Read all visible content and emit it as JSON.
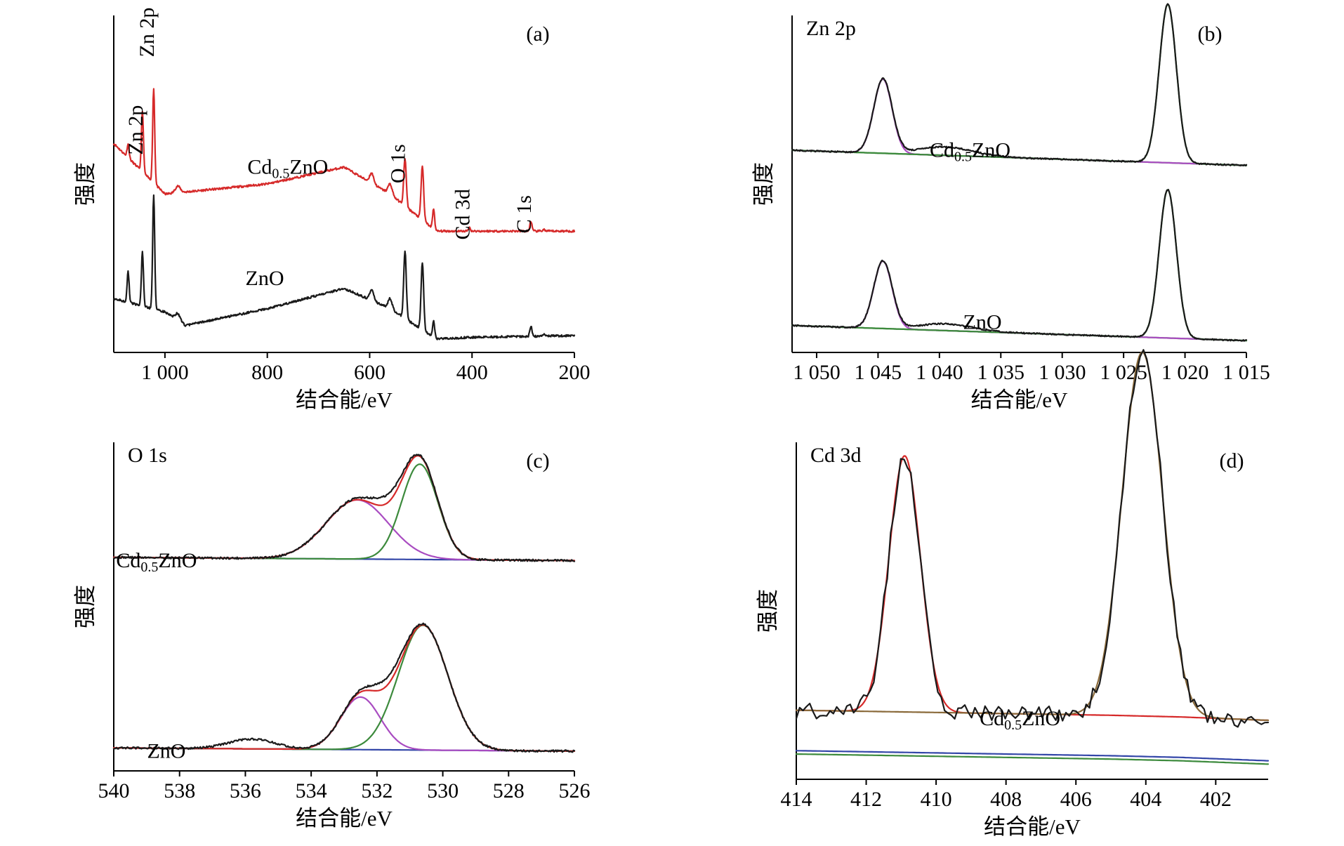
{
  "colors": {
    "black": "#1a1a1a",
    "red": "#d62a2a",
    "green": "#3c8a3c",
    "magenta": "#a94cc1",
    "blue": "#3346a8",
    "brown": "#8a6a3a"
  },
  "chart_data": [
    {
      "id": "a",
      "type": "line",
      "panel_label": "(a)",
      "xlabel": "结合能/eV",
      "ylabel": "强度",
      "xlim": [
        1100,
        200
      ],
      "xticks": [
        1000,
        800,
        600,
        400,
        200
      ],
      "xtick_labels": [
        "1 000",
        "800",
        "600",
        "400",
        "200"
      ],
      "yaxis_ticks": false,
      "annotations": [
        {
          "text": "Zn 2p",
          "x": 1044,
          "y": 0.66,
          "rotate": -90
        },
        {
          "text": "Zn 2p",
          "x": 1022,
          "y": 0.95,
          "rotate": -90
        },
        {
          "text": "O 1s",
          "x": 531,
          "y": 0.56,
          "rotate": -90
        },
        {
          "text": "Cd 3d",
          "x": 405,
          "y": 0.41,
          "rotate": -90
        },
        {
          "text": "C 1s",
          "x": 285,
          "y": 0.41,
          "rotate": -90
        },
        {
          "text": "ZnO",
          "x": 805,
          "y": 0.2
        },
        {
          "text_main": "Cd",
          "text_sub": "0.5",
          "text_tail": "ZnO",
          "x": 760,
          "y": 0.53
        }
      ],
      "series": [
        {
          "name": "Cd0.5ZnO",
          "color": "red",
          "baseline": [
            [
              1100,
              0.62
            ],
            [
              1000,
              0.47
            ],
            [
              800,
              0.5
            ],
            [
              650,
              0.55
            ],
            [
              560,
              0.47
            ],
            [
              470,
              0.36
            ],
            [
              400,
              0.36
            ],
            [
              200,
              0.36
            ]
          ],
          "peaks": [
            [
              1072,
              0.04,
              2
            ],
            [
              1044,
              0.18,
              2
            ],
            [
              1022,
              0.28,
              2
            ],
            [
              975,
              0.02,
              5
            ],
            [
              596,
              0.03,
              4
            ],
            [
              560,
              0.03,
              4
            ],
            [
              531,
              0.14,
              2.5
            ],
            [
              497,
              0.16,
              2.5
            ],
            [
              475,
              0.06,
              2
            ],
            [
              405,
              0.01,
              2
            ],
            [
              285,
              0.03,
              2
            ],
            [
              260,
              0.005,
              2
            ]
          ]
        },
        {
          "name": "ZnO",
          "color": "black",
          "baseline": [
            [
              1100,
              0.16
            ],
            [
              1000,
              0.12
            ],
            [
              960,
              0.08
            ],
            [
              800,
              0.13
            ],
            [
              650,
              0.19
            ],
            [
              560,
              0.13
            ],
            [
              470,
              0.04
            ],
            [
              400,
              0.045
            ],
            [
              200,
              0.05
            ]
          ],
          "peaks": [
            [
              1072,
              0.09,
              2
            ],
            [
              1044,
              0.16,
              2
            ],
            [
              1022,
              0.34,
              2
            ],
            [
              975,
              0.02,
              5
            ],
            [
              596,
              0.03,
              4
            ],
            [
              560,
              0.03,
              4
            ],
            [
              531,
              0.2,
              2.5
            ],
            [
              497,
              0.2,
              2.5
            ],
            [
              475,
              0.05,
              2
            ],
            [
              285,
              0.03,
              2
            ],
            [
              260,
              0.005,
              2
            ]
          ]
        }
      ]
    },
    {
      "id": "b",
      "type": "line",
      "panel_label": "(b)",
      "corner_label": "Zn 2p",
      "xlabel": "结合能/eV",
      "ylabel": "强度",
      "xlim": [
        1052,
        1015
      ],
      "xticks": [
        1050,
        1045,
        1040,
        1035,
        1030,
        1025,
        1020,
        1015
      ],
      "xtick_labels": [
        "1 050",
        "1 045",
        "1 040",
        "1 035",
        "1 030",
        "1 025",
        "1 020",
        "1 015"
      ],
      "yaxis_ticks": false,
      "annotations": [
        {
          "text_main": "Cd",
          "text_sub": "0.5",
          "text_tail": "ZnO",
          "x": 1037.5,
          "y": 0.58
        },
        {
          "text": "ZnO",
          "x": 1036.5,
          "y": 0.07
        }
      ],
      "groups": [
        {
          "name": "Cd0.5ZnO",
          "offset": 0.52,
          "baseline": [
            [
              1052,
              0.0
            ],
            [
              1015,
              -0.045
            ]
          ],
          "peaks": [
            {
              "center": 1044.6,
              "height": 0.22,
              "width": 0.75
            },
            {
              "center": 1021.4,
              "height": 0.47,
              "width": 0.7
            }
          ],
          "shoulder": {
            "center": 1039.5,
            "height": 0.025,
            "width": 2.2
          }
        },
        {
          "name": "ZnO",
          "offset": 0.0,
          "baseline": [
            [
              1052,
              0.0
            ],
            [
              1015,
              -0.045
            ]
          ],
          "peaks": [
            {
              "center": 1044.6,
              "height": 0.2,
              "width": 0.75
            },
            {
              "center": 1021.4,
              "height": 0.44,
              "width": 0.7
            }
          ],
          "shoulder": {
            "center": 1039.5,
            "height": 0.02,
            "width": 2.2
          }
        }
      ]
    },
    {
      "id": "c",
      "type": "line",
      "panel_label": "(c)",
      "corner_label": "O 1s",
      "xlabel": "结合能/eV",
      "ylabel": "强度",
      "xlim": [
        540,
        526
      ],
      "xticks": [
        540,
        538,
        536,
        534,
        532,
        530,
        528,
        526
      ],
      "xtick_labels": [
        "540",
        "538",
        "536",
        "534",
        "532",
        "530",
        "528",
        "526"
      ],
      "yaxis_ticks": false,
      "annotations": [
        {
          "text_main": "Cd",
          "text_sub": "0.5",
          "text_tail": "ZnO",
          "x": 538.7,
          "y": 0.62
        },
        {
          "text": "ZnO",
          "x": 538.4,
          "y": 0.04
        }
      ],
      "groups": [
        {
          "name": "Cd0.5ZnO",
          "offset": 0.58,
          "baseline": [
            [
              540,
              0.0
            ],
            [
              526,
              -0.01
            ]
          ],
          "components": [
            {
              "center": 532.6,
              "height": 0.18,
              "width": 0.95,
              "color": "magenta"
            },
            {
              "center": 530.7,
              "height": 0.29,
              "width": 0.55,
              "color": "green"
            }
          ]
        },
        {
          "name": "ZnO",
          "offset": 0.0,
          "baseline": [
            [
              540,
              0.0
            ],
            [
              526,
              -0.01
            ]
          ],
          "components": [
            {
              "center": 532.5,
              "height": 0.16,
              "width": 0.6,
              "color": "magenta"
            },
            {
              "center": 530.6,
              "height": 0.38,
              "width": 0.75,
              "color": "green"
            }
          ],
          "extra_shoulder": {
            "center": 535.8,
            "height": 0.03,
            "width": 0.7
          }
        }
      ]
    },
    {
      "id": "d",
      "type": "line",
      "panel_label": "(d)",
      "corner_label": "Cd 3d",
      "xlabel": "结合能/eV",
      "ylabel": "强度",
      "xlim": [
        414,
        400.5
      ],
      "xticks": [
        414,
        412,
        410,
        408,
        406,
        404,
        402
      ],
      "xtick_labels": [
        "414",
        "412",
        "410",
        "408",
        "406",
        "404",
        "402"
      ],
      "yaxis_ticks": false,
      "annotations": [
        {
          "text_main": "Cd",
          "text_sub": "0.5",
          "text_tail": "ZnO",
          "x": 407.6,
          "y": 0.16
        }
      ],
      "groups": [
        {
          "name": "Cd0.5ZnO",
          "offset": 0.0,
          "baseline": [
            [
              414,
              0.085
            ],
            [
              405,
              0.07
            ],
            [
              403,
              0.065
            ],
            [
              400.5,
              0.055
            ]
          ],
          "components": [
            {
              "center": 410.9,
              "height": 0.76,
              "width": 0.45,
              "color": "red"
            },
            {
              "center": 404.1,
              "height": 1.08,
              "width": 0.58,
              "color": "brown"
            }
          ]
        }
      ]
    }
  ]
}
